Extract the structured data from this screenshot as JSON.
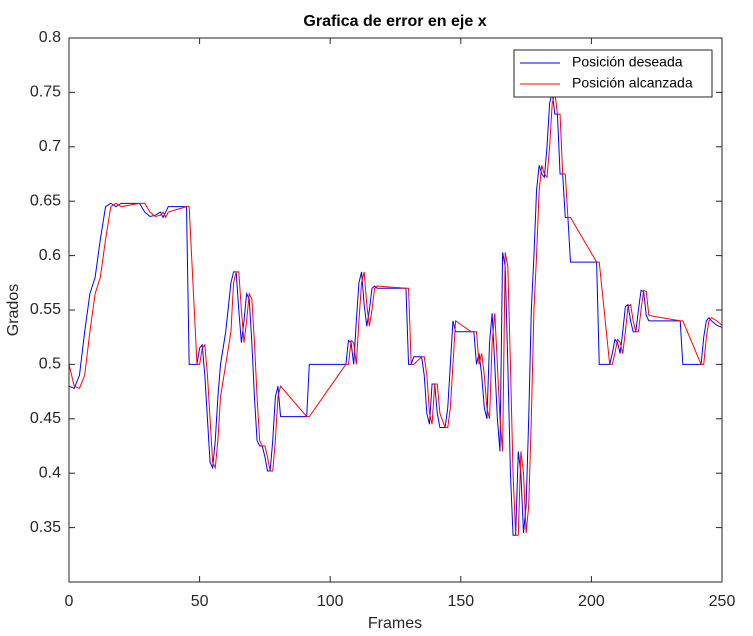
{
  "chart_data": {
    "type": "line",
    "title": "Grafica de error en eje x",
    "x_label": "Frames",
    "y_label": "Grados",
    "xlim": [
      0,
      250
    ],
    "ylim": [
      0.3,
      0.8
    ],
    "xticks": [
      0,
      50,
      100,
      150,
      200,
      250
    ],
    "yticks": [
      0.35,
      0.4,
      0.45,
      0.5,
      0.55,
      0.6,
      0.65,
      0.7,
      0.75,
      0.8
    ],
    "grid": false,
    "legend": "top-right",
    "x": [
      0,
      2,
      4,
      6,
      8,
      10,
      12,
      14,
      16,
      18,
      20,
      27,
      29,
      31,
      33,
      35,
      36,
      37,
      38,
      45,
      46,
      49,
      50,
      51,
      52,
      53,
      54,
      55,
      56,
      57,
      58,
      60,
      62,
      63,
      64,
      65,
      66,
      67,
      68,
      69,
      70,
      71,
      72,
      73,
      74,
      75,
      76,
      77,
      78,
      79,
      80,
      81,
      91,
      92,
      106,
      107,
      108,
      109,
      110,
      111,
      112,
      113,
      114,
      115,
      116,
      117,
      118,
      129,
      130,
      131,
      132,
      135,
      136,
      137,
      138,
      139,
      140,
      141,
      142,
      144,
      145,
      146,
      147,
      148,
      154,
      155,
      156,
      157,
      158,
      159,
      160,
      161,
      162,
      163,
      164,
      165,
      166,
      167,
      168,
      169,
      170,
      171,
      172,
      173,
      174,
      175,
      176,
      177,
      178,
      179,
      180,
      181,
      182,
      183,
      184,
      185,
      186,
      187,
      188,
      189,
      190,
      191,
      192,
      202,
      203,
      207,
      208,
      209,
      210,
      211,
      212,
      213,
      214,
      215,
      216,
      217,
      218,
      219,
      220,
      221,
      222,
      234,
      235,
      242,
      243,
      244,
      245,
      246,
      248,
      250
    ],
    "series": [
      {
        "name": "Posición deseada",
        "color": "#0000ff",
        "values": [
          0.48,
          0.478,
          0.49,
          0.53,
          0.565,
          0.58,
          0.615,
          0.645,
          0.648,
          0.645,
          0.648,
          0.648,
          0.64,
          0.636,
          0.637,
          0.64,
          0.635,
          0.64,
          0.645,
          0.645,
          0.5,
          0.5,
          0.515,
          0.518,
          0.49,
          0.45,
          0.41,
          0.405,
          0.43,
          0.47,
          0.5,
          0.53,
          0.575,
          0.585,
          0.585,
          0.55,
          0.52,
          0.54,
          0.565,
          0.56,
          0.52,
          0.47,
          0.43,
          0.425,
          0.425,
          0.415,
          0.402,
          0.402,
          0.43,
          0.47,
          0.48,
          0.452,
          0.452,
          0.5,
          0.5,
          0.522,
          0.52,
          0.5,
          0.54,
          0.575,
          0.585,
          0.555,
          0.535,
          0.55,
          0.57,
          0.572,
          0.57,
          0.57,
          0.5,
          0.5,
          0.507,
          0.507,
          0.49,
          0.455,
          0.445,
          0.482,
          0.482,
          0.455,
          0.442,
          0.442,
          0.46,
          0.5,
          0.54,
          0.53,
          0.53,
          0.53,
          0.5,
          0.51,
          0.49,
          0.46,
          0.45,
          0.52,
          0.547,
          0.5,
          0.45,
          0.42,
          0.603,
          0.59,
          0.5,
          0.4,
          0.343,
          0.343,
          0.42,
          0.4,
          0.345,
          0.37,
          0.45,
          0.55,
          0.6,
          0.66,
          0.683,
          0.675,
          0.672,
          0.7,
          0.74,
          0.75,
          0.73,
          0.73,
          0.675,
          0.675,
          0.635,
          0.635,
          0.594,
          0.594,
          0.5,
          0.5,
          0.51,
          0.523,
          0.52,
          0.51,
          0.53,
          0.553,
          0.555,
          0.54,
          0.53,
          0.53,
          0.55,
          0.568,
          0.567,
          0.545,
          0.54,
          0.54,
          0.5,
          0.5,
          0.525,
          0.54,
          0.543,
          0.54,
          0.536,
          0.534
        ]
      },
      {
        "name": "Posición alcanzada",
        "color": "#ff0000",
        "values": [
          0.5,
          0.48,
          0.478,
          0.49,
          0.53,
          0.565,
          0.58,
          0.615,
          0.645,
          0.648,
          0.645,
          0.648,
          0.648,
          0.64,
          0.636,
          0.637,
          0.64,
          0.635,
          0.64,
          0.645,
          0.645,
          0.5,
          0.5,
          0.515,
          0.518,
          0.49,
          0.45,
          0.41,
          0.405,
          0.43,
          0.47,
          0.5,
          0.53,
          0.575,
          0.585,
          0.585,
          0.55,
          0.52,
          0.54,
          0.565,
          0.56,
          0.52,
          0.47,
          0.43,
          0.425,
          0.425,
          0.415,
          0.402,
          0.402,
          0.43,
          0.47,
          0.48,
          0.452,
          0.452,
          0.5,
          0.5,
          0.522,
          0.52,
          0.5,
          0.54,
          0.575,
          0.585,
          0.555,
          0.535,
          0.55,
          0.57,
          0.572,
          0.57,
          0.57,
          0.5,
          0.5,
          0.507,
          0.507,
          0.49,
          0.455,
          0.445,
          0.482,
          0.482,
          0.455,
          0.442,
          0.442,
          0.46,
          0.5,
          0.54,
          0.53,
          0.53,
          0.53,
          0.5,
          0.51,
          0.49,
          0.46,
          0.45,
          0.52,
          0.547,
          0.5,
          0.45,
          0.42,
          0.603,
          0.59,
          0.5,
          0.4,
          0.343,
          0.343,
          0.42,
          0.4,
          0.345,
          0.37,
          0.45,
          0.55,
          0.6,
          0.66,
          0.683,
          0.675,
          0.672,
          0.7,
          0.74,
          0.75,
          0.73,
          0.73,
          0.675,
          0.675,
          0.635,
          0.635,
          0.594,
          0.594,
          0.5,
          0.5,
          0.51,
          0.523,
          0.52,
          0.51,
          0.53,
          0.553,
          0.555,
          0.54,
          0.53,
          0.53,
          0.55,
          0.568,
          0.567,
          0.545,
          0.54,
          0.54,
          0.5,
          0.5,
          0.525,
          0.54,
          0.543,
          0.54,
          0.536
        ]
      }
    ]
  }
}
